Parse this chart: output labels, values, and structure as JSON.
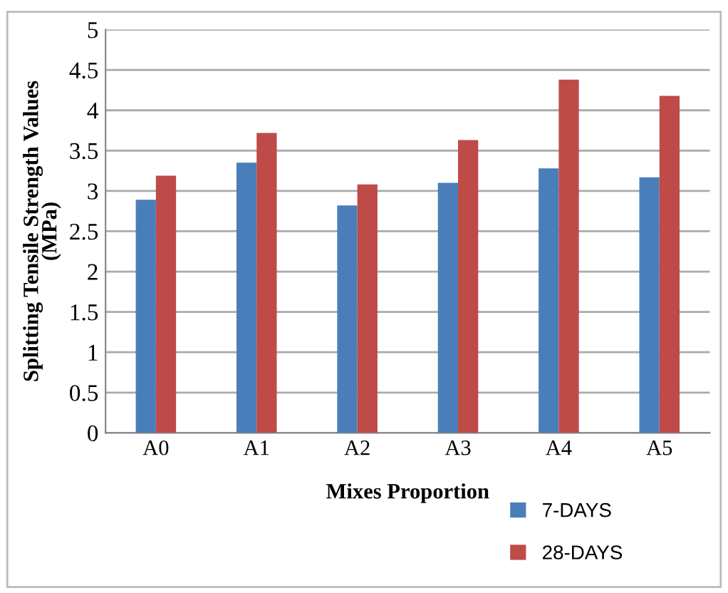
{
  "chart_data": {
    "type": "bar",
    "xlabel": "Mixes Proportion",
    "ylabel": "Splitting Tensile Strength Values\n(MPa)",
    "categories": [
      "A0",
      "A1",
      "A2",
      "A3",
      "A4",
      "A5"
    ],
    "series": [
      {
        "name": "7-DAYS",
        "color": "#4a7ebb",
        "values": [
          2.89,
          3.35,
          2.82,
          3.1,
          3.28,
          3.17
        ]
      },
      {
        "name": "28-DAYS",
        "color": "#be4b48",
        "values": [
          3.19,
          3.72,
          3.08,
          3.63,
          4.38,
          4.18
        ]
      }
    ],
    "ylim": [
      0,
      5
    ],
    "yticks": [
      0,
      0.5,
      1,
      1.5,
      2,
      2.5,
      3,
      3.5,
      4,
      4.5,
      5
    ],
    "grid": "y",
    "legend": "bottom right"
  }
}
